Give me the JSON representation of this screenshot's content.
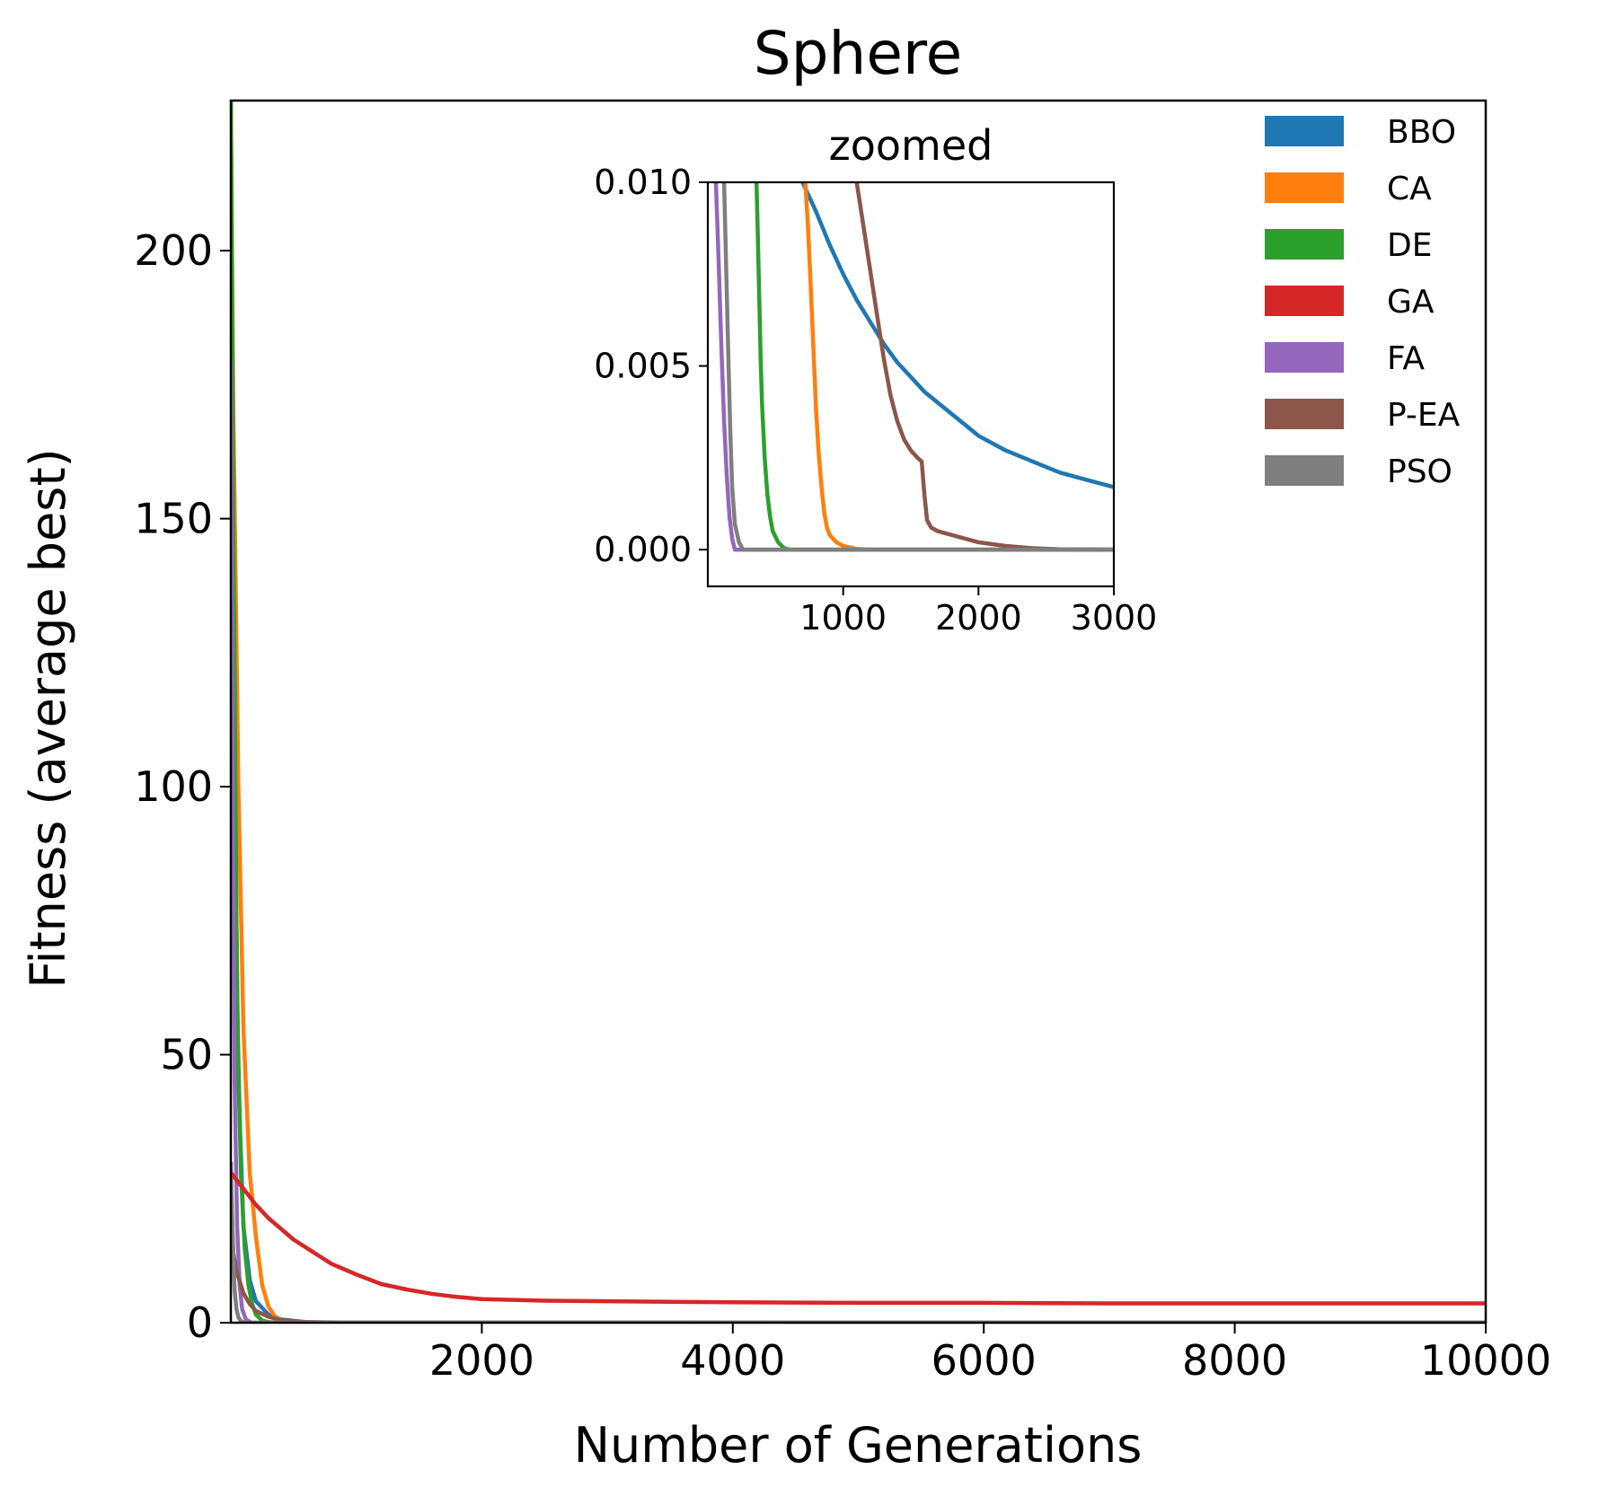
{
  "colors": {
    "BBO": "#1f77b4",
    "CA": "#ff7f0e",
    "DE": "#2ca02c",
    "GA": "#d62728",
    "FA": "#9467bd",
    "P-EA": "#8c564b",
    "PSO": "#7f7f7f"
  },
  "chart_data": [
    {
      "type": "line",
      "title": "Sphere",
      "xlabel": "Number of Generations",
      "ylabel": "Fitness (average best)",
      "xlim": [
        0,
        10000
      ],
      "ylim": [
        0,
        228
      ],
      "xticks": [
        2000,
        4000,
        6000,
        8000,
        10000
      ],
      "yticks": [
        0,
        50,
        100,
        150,
        200
      ],
      "xtick_labels": [
        "2000",
        "4000",
        "6000",
        "8000",
        "10000"
      ],
      "ytick_labels": [
        "0",
        "50",
        "100",
        "150",
        "200"
      ],
      "legend_position": "top-right",
      "series": [
        {
          "name": "BBO",
          "x": [
            0,
            20,
            60,
            100,
            150,
            200,
            300,
            400,
            600,
            1000,
            10000
          ],
          "y": [
            228,
            120,
            45,
            18,
            8,
            4,
            1.5,
            0.6,
            0.1,
            0.01,
            0
          ]
        },
        {
          "name": "CA",
          "x": [
            0,
            20,
            60,
            100,
            150,
            200,
            250,
            300,
            350,
            400,
            500,
            700,
            1000,
            10000
          ],
          "y": [
            228,
            170,
            100,
            55,
            28,
            16,
            7,
            3,
            1.2,
            0.5,
            0.1,
            0.01,
            0,
            0
          ]
        },
        {
          "name": "DE",
          "x": [
            0,
            20,
            50,
            80,
            110,
            140,
            170,
            200,
            250,
            300,
            400,
            10000
          ],
          "y": [
            228,
            150,
            60,
            28,
            14,
            7,
            3.5,
            1.5,
            0.4,
            0.1,
            0,
            0
          ]
        },
        {
          "name": "GA",
          "x": [
            0,
            100,
            200,
            300,
            400,
            500,
            600,
            700,
            800,
            900,
            1000,
            1200,
            1400,
            1600,
            1800,
            2000,
            2500,
            3000,
            4000,
            5000,
            6000,
            7000,
            8000,
            9000,
            10000
          ],
          "y": [
            28,
            25,
            22,
            19.5,
            17.5,
            15.5,
            14,
            12.5,
            11,
            10,
            9,
            7.2,
            6.2,
            5.4,
            4.8,
            4.4,
            4.1,
            4,
            3.8,
            3.7,
            3.7,
            3.6,
            3.6,
            3.6,
            3.6
          ]
        },
        {
          "name": "FA",
          "x": [
            0,
            15,
            30,
            50,
            70,
            90,
            120,
            160,
            200,
            10000
          ],
          "y": [
            180,
            100,
            45,
            18,
            7,
            2.5,
            0.6,
            0.05,
            0,
            0
          ]
        },
        {
          "name": "P-EA",
          "x": [
            0,
            20,
            40,
            60,
            80,
            100,
            150,
            200,
            300,
            400,
            500,
            700,
            1000,
            10000
          ],
          "y": [
            25,
            13,
            10,
            8.5,
            7,
            5.5,
            3.5,
            2.2,
            1.1,
            0.5,
            0.2,
            0.05,
            0.01,
            0
          ]
        },
        {
          "name": "PSO",
          "x": [
            0,
            15,
            30,
            45,
            60,
            80,
            100,
            150,
            10000
          ],
          "y": [
            30,
            15,
            6,
            2.5,
            1,
            0.3,
            0.08,
            0,
            0
          ]
        }
      ]
    },
    {
      "type": "line",
      "title": "zoomed",
      "xlim": [
        0,
        3000
      ],
      "ylim": [
        -0.001,
        0.01
      ],
      "xticks": [
        1000,
        2000,
        3000
      ],
      "yticks": [
        0,
        0.005,
        0.01
      ],
      "xtick_labels": [
        "1000",
        "2000",
        "3000"
      ],
      "ytick_labels": [
        "0.000",
        "0.005",
        "0.010"
      ],
      "series": [
        {
          "name": "BBO",
          "x": [
            700,
            800,
            900,
            1000,
            1100,
            1200,
            1300,
            1400,
            1500,
            1600,
            1700,
            1800,
            1900,
            2000,
            2200,
            2400,
            2600,
            2800,
            3000
          ],
          "y": [
            0.01,
            0.0092,
            0.0083,
            0.0075,
            0.0068,
            0.0062,
            0.0056,
            0.0051,
            0.0047,
            0.0043,
            0.004,
            0.0037,
            0.0034,
            0.0031,
            0.0027,
            0.0024,
            0.0021,
            0.0019,
            0.0017
          ]
        },
        {
          "name": "CA",
          "x": [
            720,
            740,
            760,
            780,
            800,
            820,
            840,
            860,
            880,
            900,
            950,
            1000,
            1100,
            1200,
            3000
          ],
          "y": [
            0.01,
            0.0088,
            0.0072,
            0.0055,
            0.0038,
            0.0026,
            0.0017,
            0.001,
            0.0006,
            0.0004,
            0.0002,
            0.0001,
            2e-05,
            0,
            0
          ]
        },
        {
          "name": "DE",
          "x": [
            360,
            370,
            380,
            390,
            400,
            420,
            440,
            460,
            480,
            520,
            560,
            600,
            3000
          ],
          "y": [
            0.01,
            0.0085,
            0.0068,
            0.0052,
            0.004,
            0.0025,
            0.0015,
            0.0009,
            0.0005,
            0.0002,
            5e-05,
            0,
            0
          ]
        },
        {
          "name": "FA",
          "x": [
            60,
            80,
            100,
            120,
            140,
            160,
            180,
            200,
            3000
          ],
          "y": [
            0.01,
            0.0078,
            0.0055,
            0.0035,
            0.002,
            0.0009,
            0.0003,
            0,
            0
          ]
        },
        {
          "name": "P-EA",
          "x": [
            1100,
            1150,
            1200,
            1250,
            1300,
            1350,
            1400,
            1450,
            1500,
            1550,
            1580,
            1600,
            1620,
            1650,
            1700,
            1800,
            1900,
            2000,
            2200,
            2400,
            2600,
            3000
          ],
          "y": [
            0.01,
            0.0088,
            0.0076,
            0.0064,
            0.0052,
            0.0042,
            0.0035,
            0.003,
            0.0027,
            0.0025,
            0.0024,
            0.0015,
            0.0008,
            0.0006,
            0.0005,
            0.0004,
            0.0003,
            0.0002,
            0.0001,
            4e-05,
            1e-05,
            0
          ]
        },
        {
          "name": "PSO",
          "x": [
            120,
            135,
            150,
            165,
            180,
            200,
            230,
            260,
            3000
          ],
          "y": [
            0.01,
            0.0078,
            0.0055,
            0.0033,
            0.0017,
            0.0007,
            0.0002,
            0,
            0
          ]
        }
      ]
    }
  ]
}
